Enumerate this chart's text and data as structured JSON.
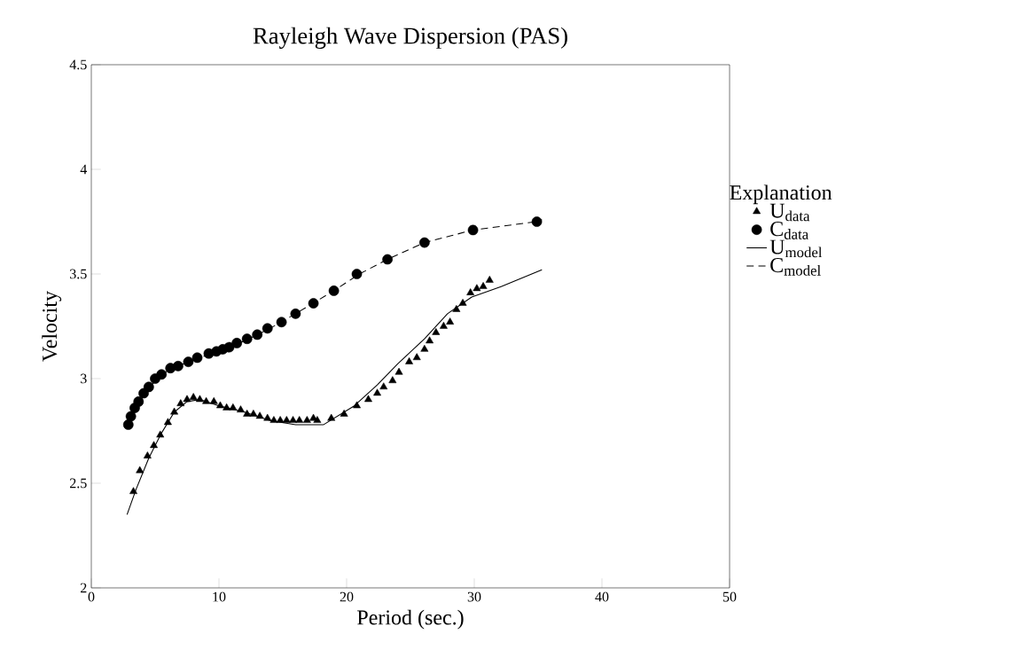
{
  "chart_data": {
    "type": "line",
    "title": "Rayleigh Wave Dispersion (PAS)",
    "xlabel": "Period (sec.)",
    "ylabel": "Velocity",
    "legend_title": "Explanation",
    "legend": "right",
    "grid": false,
    "xlim": [
      0,
      50
    ],
    "ylim": [
      2,
      4.5
    ],
    "xticks": [
      0,
      10,
      20,
      30,
      40,
      50
    ],
    "yticks": [
      2,
      2.5,
      3,
      3.5,
      4,
      4.5
    ],
    "series": [
      {
        "name": "U$_{data}$",
        "type": "scatter",
        "marker": "triangle",
        "color": "#000000",
        "x": [
          3.3,
          3.8,
          4.4,
          4.9,
          5.4,
          6.0,
          6.5,
          7.0,
          7.5,
          8.0,
          8.5,
          9.0,
          9.6,
          10.1,
          10.6,
          11.1,
          11.7,
          12.2,
          12.7,
          13.2,
          13.8,
          14.3,
          14.8,
          15.3,
          15.8,
          16.3,
          16.9,
          17.4,
          17.7,
          18.8,
          19.8,
          20.8,
          21.7,
          22.4,
          22.9,
          23.6,
          24.1,
          24.9,
          25.5,
          26.1,
          26.5,
          27.0,
          27.6,
          28.1,
          28.6,
          29.1,
          29.7,
          30.2,
          30.7,
          31.2
        ],
        "values": [
          2.46,
          2.56,
          2.63,
          2.68,
          2.73,
          2.79,
          2.84,
          2.88,
          2.9,
          2.91,
          2.9,
          2.89,
          2.89,
          2.87,
          2.86,
          2.86,
          2.85,
          2.83,
          2.83,
          2.82,
          2.81,
          2.8,
          2.8,
          2.8,
          2.8,
          2.8,
          2.8,
          2.81,
          2.8,
          2.81,
          2.83,
          2.87,
          2.9,
          2.93,
          2.96,
          2.99,
          3.03,
          3.08,
          3.1,
          3.14,
          3.18,
          3.22,
          3.25,
          3.27,
          3.33,
          3.36,
          3.41,
          3.43,
          3.44,
          3.47
        ]
      },
      {
        "name": "C$_{data}$",
        "type": "scatter",
        "marker": "circle",
        "color": "#000000",
        "x": [
          2.9,
          3.1,
          3.4,
          3.7,
          4.1,
          4.5,
          5.0,
          5.5,
          6.2,
          6.8,
          7.6,
          8.3,
          9.2,
          9.8,
          10.3,
          10.8,
          11.4,
          12.2,
          13.0,
          13.8,
          14.9,
          16.0,
          17.4,
          19.0,
          20.8,
          23.2,
          26.1,
          29.9,
          34.9
        ],
        "values": [
          2.78,
          2.82,
          2.86,
          2.89,
          2.93,
          2.96,
          3.0,
          3.02,
          3.05,
          3.06,
          3.08,
          3.1,
          3.12,
          3.13,
          3.14,
          3.15,
          3.17,
          3.19,
          3.21,
          3.24,
          3.27,
          3.31,
          3.36,
          3.42,
          3.5,
          3.57,
          3.65,
          3.71,
          3.75
        ]
      },
      {
        "name": "U$_{model}$",
        "type": "line",
        "line_style": "solid",
        "color": "#000000",
        "x": [
          2.8,
          3.5,
          4.5,
          5.5,
          6.5,
          7.5,
          8.5,
          10,
          12,
          14,
          16,
          18.2,
          20.6,
          22.4,
          24.0,
          26.1,
          27.9,
          29.8,
          32.1,
          35.3
        ],
        "values": [
          2.35,
          2.47,
          2.62,
          2.74,
          2.84,
          2.89,
          2.9,
          2.87,
          2.84,
          2.8,
          2.78,
          2.78,
          2.87,
          2.97,
          3.07,
          3.19,
          3.31,
          3.39,
          3.44,
          3.52
        ]
      },
      {
        "name": "C$_{model}$",
        "type": "line",
        "line_style": "dashed",
        "color": "#000000",
        "x": [
          2.9,
          4,
          5,
          6,
          8,
          10,
          12,
          14,
          16,
          19,
          21,
          23.2,
          26.1,
          29.9,
          34.9,
          35.3
        ],
        "values": [
          2.78,
          2.91,
          2.99,
          3.04,
          3.09,
          3.13,
          3.18,
          3.24,
          3.31,
          3.42,
          3.5,
          3.57,
          3.65,
          3.71,
          3.75,
          3.76
        ]
      }
    ]
  }
}
